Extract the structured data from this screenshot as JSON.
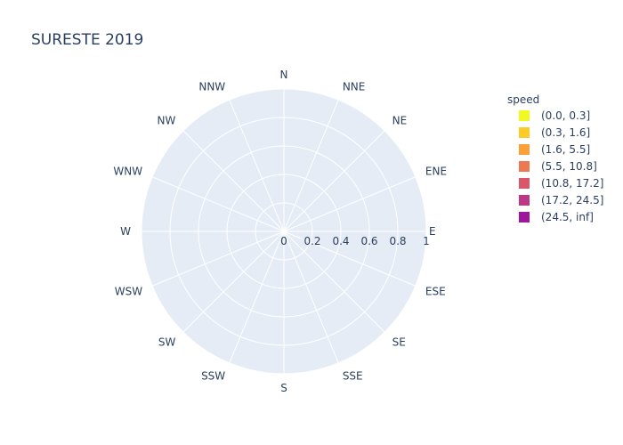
{
  "chart_data": {
    "type": "barpolar",
    "title": "SURESTE 2019",
    "directions": [
      "N",
      "NNE",
      "NE",
      "ENE",
      "E",
      "ESE",
      "SE",
      "SSE",
      "S",
      "SSW",
      "SW",
      "WSW",
      "W",
      "WNW",
      "NW",
      "NNW"
    ],
    "radial_ticks": [
      "0",
      "0.2",
      "0.4",
      "0.6",
      "0.8",
      "1"
    ],
    "radial_range": [
      0,
      1
    ],
    "legend": {
      "title": "speed",
      "placement": "top-right",
      "items": [
        {
          "label": "(0.0, 0.3]",
          "color": "#f0f921"
        },
        {
          "label": "(0.3, 1.6]",
          "color": "#fdca26"
        },
        {
          "label": "(1.6, 5.5]",
          "color": "#fb9f3a"
        },
        {
          "label": "(5.5, 10.8]",
          "color": "#ed7953"
        },
        {
          "label": "(10.8, 17.2]",
          "color": "#d8576b"
        },
        {
          "label": "(17.2, 24.5]",
          "color": "#bd3786"
        },
        {
          "label": "(24.5, inf]",
          "color": "#9c179e"
        }
      ]
    },
    "series": []
  },
  "colors": {
    "polar_bg": "#e5ecf6",
    "grid": "#ffffff",
    "text": "#2a3f5f"
  }
}
